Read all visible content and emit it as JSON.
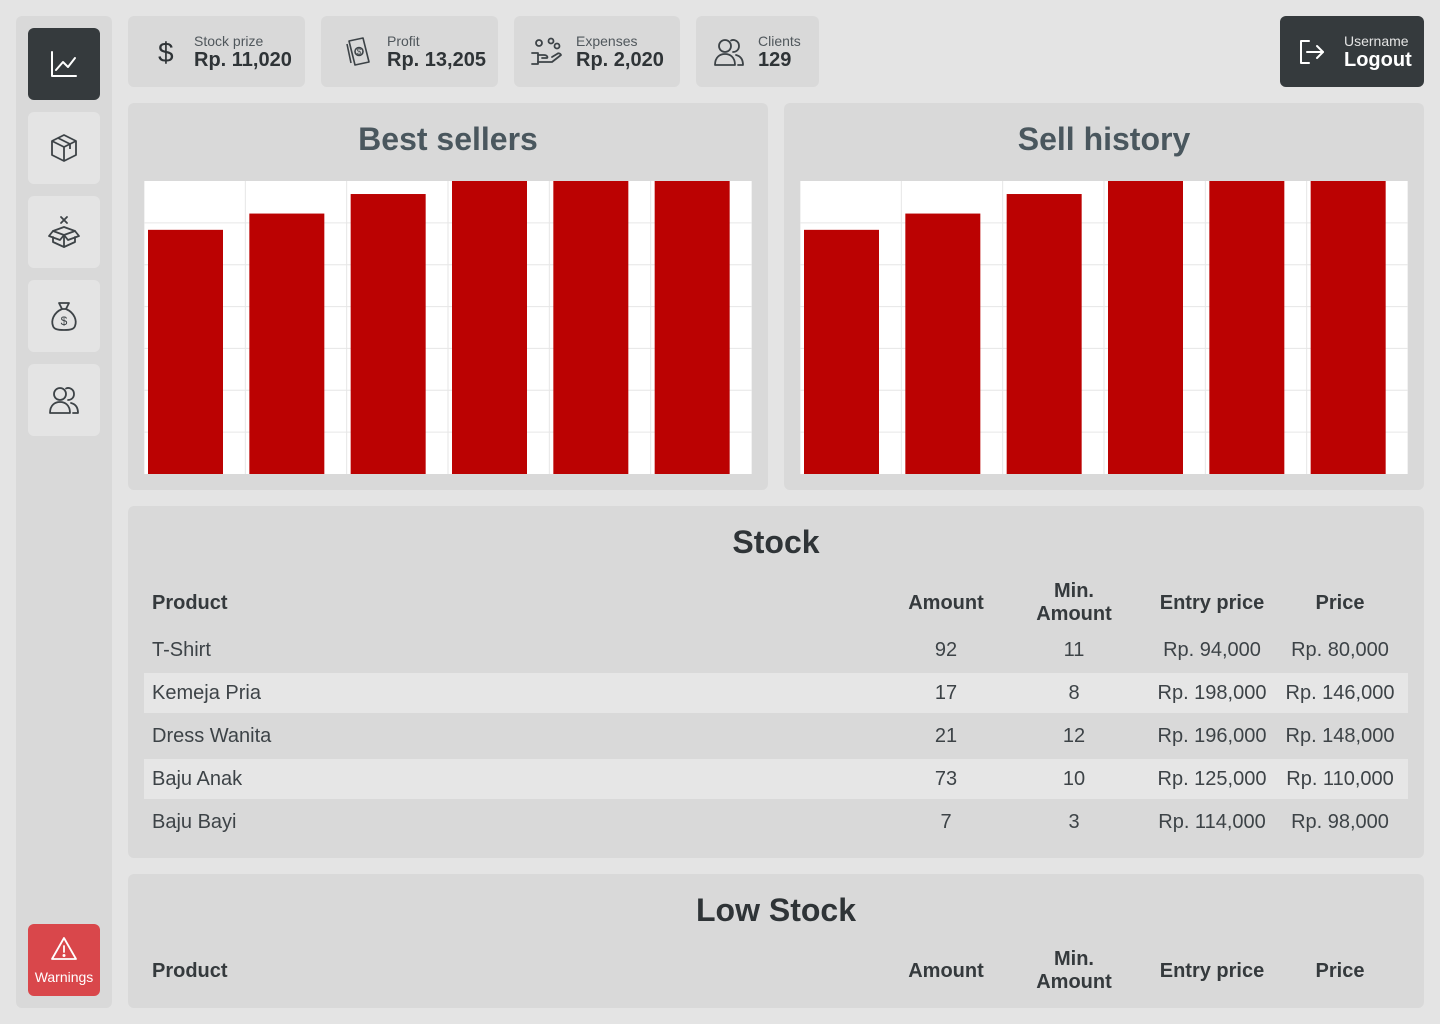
{
  "sidebar": {
    "items": [
      {
        "name": "dashboard",
        "icon": "chart-line-icon",
        "active": true
      },
      {
        "name": "products",
        "icon": "box-icon",
        "active": false
      },
      {
        "name": "open-box",
        "icon": "open-box-icon",
        "active": false
      },
      {
        "name": "money",
        "icon": "money-bag-icon",
        "active": false
      },
      {
        "name": "clients",
        "icon": "users-icon",
        "active": false
      }
    ],
    "warnings_label": "Warnings"
  },
  "stats": [
    {
      "label": "Stock prize",
      "value": "Rp. 11,020",
      "icon": "dollar-icon"
    },
    {
      "label": "Profit",
      "value": "Rp. 13,205",
      "icon": "cash-icon"
    },
    {
      "label": "Expenses",
      "value": "Rp. 2,020",
      "icon": "hand-coins-icon"
    },
    {
      "label": "Clients",
      "value": "129",
      "icon": "users-icon"
    }
  ],
  "user": {
    "label": "Username",
    "action": "Logout"
  },
  "chart_data": [
    {
      "type": "bar",
      "title": "Best sellers",
      "values": [
        75,
        80,
        86,
        90,
        92,
        94
      ],
      "ylim": [
        0,
        90
      ],
      "grid": true,
      "color": "#bb0202"
    },
    {
      "type": "bar",
      "title": "Sell history",
      "values": [
        75,
        80,
        86,
        90,
        92,
        94
      ],
      "ylim": [
        0,
        90
      ],
      "grid": true,
      "color": "#bb0202"
    }
  ],
  "stock": {
    "title": "Stock",
    "columns": [
      "Product",
      "Amount",
      "Min. Amount",
      "Entry price",
      "Price"
    ],
    "rows": [
      [
        "T-Shirt",
        "92",
        "11",
        "Rp. 94,000",
        "Rp. 80,000"
      ],
      [
        "Kemeja Pria",
        "17",
        "8",
        "Rp. 198,000",
        "Rp. 146,000"
      ],
      [
        "Dress Wanita",
        "21",
        "12",
        "Rp. 196,000",
        "Rp. 148,000"
      ],
      [
        "Baju Anak",
        "73",
        "10",
        "Rp. 125,000",
        "Rp. 110,000"
      ],
      [
        "Baju Bayi",
        "7",
        "3",
        "Rp. 114,000",
        "Rp. 98,000"
      ]
    ]
  },
  "low_stock": {
    "title": "Low Stock",
    "columns": [
      "Product",
      "Amount",
      "Min. Amount",
      "Entry price",
      "Price"
    ]
  }
}
